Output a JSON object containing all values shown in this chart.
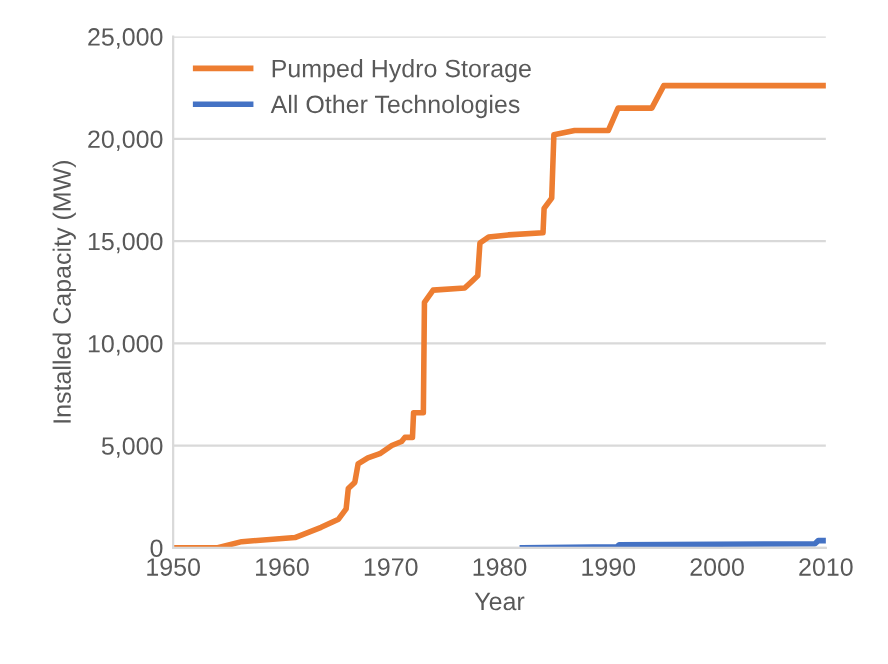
{
  "chart_data": {
    "type": "line",
    "xlabel": "Year",
    "ylabel": "Installed Capacity (MW)",
    "xlim": [
      1950,
      2010
    ],
    "xticks": [
      1950,
      1960,
      1970,
      1980,
      1990,
      2000,
      2010
    ],
    "ylim": [
      0,
      25000
    ],
    "yticks": [
      {
        "value": 0,
        "label": "0"
      },
      {
        "value": 5000,
        "label": "5,000"
      },
      {
        "value": 10000,
        "label": "10,000"
      },
      {
        "value": 15000,
        "label": "15,000"
      },
      {
        "value": 20000,
        "label": "20,000"
      },
      {
        "value": 25000,
        "label": "25,000"
      }
    ],
    "grid": "y",
    "legend": "top left",
    "series": [
      {
        "name": "Pumped Hydro Storage",
        "color": "#ed7d31",
        "x": [
          1950,
          1954.1,
          1956.3,
          1961.2,
          1963.6,
          1965.2,
          1965.9,
          1966.1,
          1966.7,
          1967,
          1967.9,
          1969,
          1970.1,
          1971,
          1971.3,
          1972,
          1972.1,
          1973,
          1973.1,
          1973.9,
          1976.8,
          1977.4,
          1978,
          1978.2,
          1979,
          1980.8,
          1984,
          1984.1,
          1984.8,
          1985,
          1986.9,
          1990,
          1990.9,
          1994,
          1995.1,
          2010
        ],
        "values": [
          0,
          0,
          300,
          500,
          1000,
          1400,
          1900,
          2900,
          3200,
          4100,
          4400,
          4600,
          5000,
          5200,
          5400,
          5400,
          6600,
          6600,
          12000,
          12600,
          12700,
          13000,
          13300,
          14900,
          15200,
          15300,
          15400,
          16600,
          17100,
          20200,
          20400,
          20400,
          21500,
          21500,
          22600,
          22600
        ]
      },
      {
        "name": "All Other Technologies",
        "color": "#4472c4",
        "x": [
          1982.1,
          1990.8,
          1991,
          2009,
          2009.3,
          2010
        ],
        "values": [
          0,
          50,
          150,
          200,
          350,
          350
        ]
      }
    ]
  }
}
